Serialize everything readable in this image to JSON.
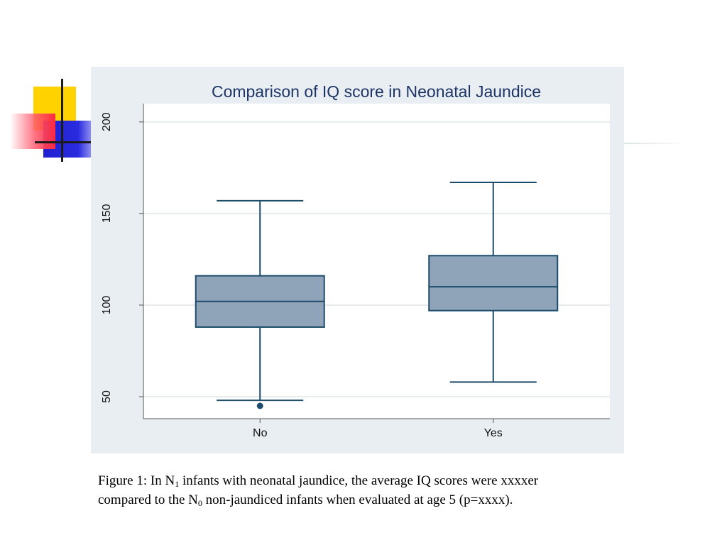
{
  "chart_data": {
    "type": "box",
    "title": "Comparison of IQ score in Neonatal Jaundice",
    "xlabel": "",
    "ylabel": "",
    "categories": [
      "No",
      "Yes"
    ],
    "ylim": [
      38,
      210
    ],
    "yticks": [
      50,
      100,
      150,
      200
    ],
    "grid": true,
    "boxes": [
      {
        "category": "No",
        "whisker_low": 48,
        "q1": 88,
        "median": 102,
        "q3": 116,
        "whisker_high": 157,
        "outliers": [
          45
        ]
      },
      {
        "category": "Yes",
        "whisker_low": 58,
        "q1": 97,
        "median": 110,
        "q3": 127,
        "whisker_high": 167,
        "outliers": []
      }
    ],
    "colors": {
      "box_fill": "#8fa3b9",
      "box_stroke": "#1e4d6b",
      "frame_background": "#e8eef1",
      "plot_background": "#ffffff",
      "title": "#1e3466",
      "grid": "#e6ebee"
    }
  },
  "caption": {
    "line1_a": "Figure 1: In N",
    "line1_sub": "1",
    "line1_b": " infants with neonatal jaundice, the average IQ scores were xxxxer",
    "line2_a": "compared to the N",
    "line2_sub": "0",
    "line2_b": " non-jaundiced infants when evaluated at age 5 (p=xxxx)."
  }
}
